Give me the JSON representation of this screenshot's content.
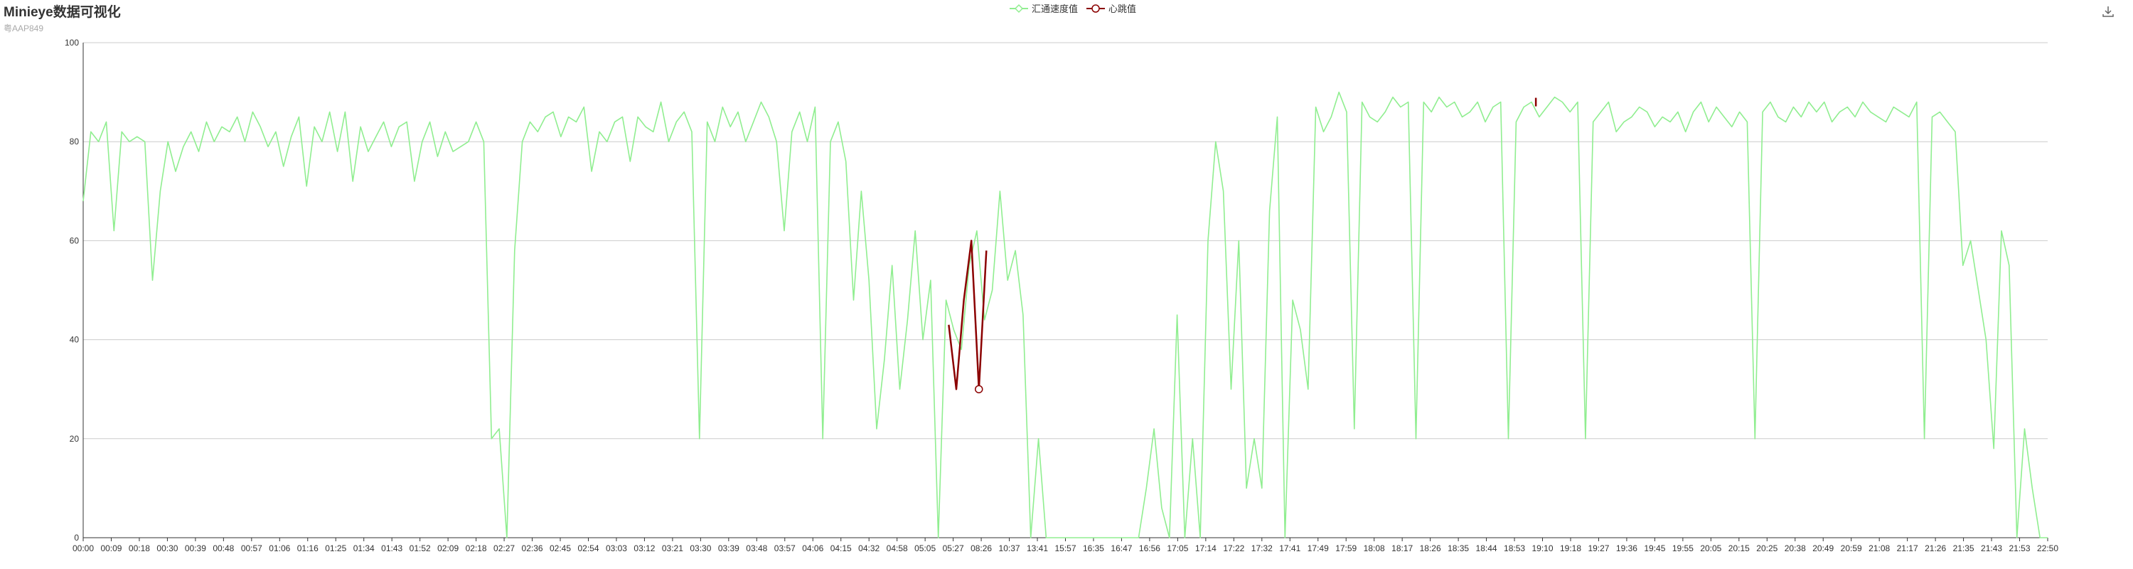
{
  "title": "Minieye数据可视化",
  "subtitle": "粤AAP849",
  "toolbox": {
    "icon": "download-icon"
  },
  "colors": {
    "speed": "#90ee90",
    "heartbeat": "#8b0000",
    "axis": "#333333",
    "grid": "#cccccc"
  },
  "chart_data": {
    "type": "line",
    "title": "Minieye数据可视化",
    "subtitle": "粤AAP849",
    "legend_position": "top-center",
    "grid": true,
    "ylim": [
      0,
      100
    ],
    "y_ticks": [
      0,
      20,
      40,
      60,
      80,
      100
    ],
    "x_ticks": [
      "00:00",
      "00:09",
      "00:18",
      "00:30",
      "00:39",
      "00:48",
      "00:57",
      "01:06",
      "01:16",
      "01:25",
      "01:34",
      "01:43",
      "01:52",
      "02:09",
      "02:18",
      "02:27",
      "02:36",
      "02:45",
      "02:54",
      "03:03",
      "03:12",
      "03:21",
      "03:30",
      "03:39",
      "03:48",
      "03:57",
      "04:06",
      "04:15",
      "04:32",
      "04:58",
      "05:05",
      "05:27",
      "08:26",
      "10:37",
      "13:41",
      "15:57",
      "16:35",
      "16:47",
      "16:56",
      "17:05",
      "17:14",
      "17:22",
      "17:32",
      "17:41",
      "17:49",
      "17:59",
      "18:08",
      "18:17",
      "18:26",
      "18:35",
      "18:44",
      "18:53",
      "19:10",
      "19:18",
      "19:27",
      "19:36",
      "19:45",
      "19:55",
      "20:05",
      "20:15",
      "20:25",
      "20:38",
      "20:49",
      "20:59",
      "21:08",
      "21:17",
      "21:26",
      "21:35",
      "21:43",
      "21:53",
      "22:50"
    ],
    "series": [
      {
        "name": "汇通速度值",
        "color": "#90ee90",
        "values": [
          68,
          82,
          80,
          84,
          62,
          82,
          80,
          81,
          80,
          52,
          70,
          80,
          74,
          79,
          82,
          78,
          84,
          80,
          83,
          82,
          85,
          80,
          86,
          83,
          79,
          82,
          75,
          81,
          85,
          71,
          83,
          80,
          86,
          78,
          86,
          72,
          83,
          78,
          81,
          84,
          79,
          83,
          84,
          72,
          80,
          84,
          77,
          82,
          78,
          79,
          80,
          84,
          80,
          20,
          22,
          0,
          58,
          80,
          84,
          82,
          85,
          86,
          81,
          85,
          84,
          87,
          74,
          82,
          80,
          84,
          85,
          76,
          85,
          83,
          82,
          88,
          80,
          84,
          86,
          82,
          20,
          84,
          80,
          87,
          83,
          86,
          80,
          84,
          88,
          85,
          80,
          62,
          82,
          86,
          80,
          87,
          20,
          80,
          84,
          76,
          48,
          70,
          52,
          22,
          36,
          55,
          30,
          44,
          62,
          40,
          52,
          0,
          48,
          42,
          38,
          55,
          62,
          44,
          50,
          70,
          52,
          58,
          45,
          0,
          20,
          0,
          0,
          0,
          0,
          0,
          0,
          0,
          0,
          0,
          0,
          0,
          0,
          0,
          10,
          22,
          6,
          0,
          45,
          0,
          20,
          0,
          60,
          80,
          70,
          30,
          60,
          10,
          20,
          10,
          66,
          85,
          0,
          48,
          42,
          30,
          87,
          82,
          85,
          90,
          86,
          22,
          88,
          85,
          84,
          86,
          89,
          87,
          88,
          20,
          88,
          86,
          89,
          87,
          88,
          85,
          86,
          88,
          84,
          87,
          88,
          20,
          84,
          87,
          88,
          85,
          87,
          89,
          88,
          86,
          88,
          20,
          84,
          86,
          88,
          82,
          84,
          85,
          87,
          86,
          83,
          85,
          84,
          86,
          82,
          86,
          88,
          84,
          87,
          85,
          83,
          86,
          84,
          20,
          86,
          88,
          85,
          84,
          87,
          85,
          88,
          86,
          88,
          84,
          86,
          87,
          85,
          88,
          86,
          85,
          84,
          87,
          86,
          85,
          88,
          20,
          85,
          86,
          84,
          82,
          55,
          60,
          50,
          40,
          18,
          62,
          55,
          0,
          22,
          10,
          0,
          0
        ],
        "note": ""
      },
      {
        "name": "心跳值",
        "color": "#8b0000",
        "values": [
          null,
          null,
          null,
          null,
          null,
          null,
          null,
          null,
          null,
          null,
          null,
          null,
          null,
          null,
          null,
          null,
          null,
          null,
          null,
          null,
          null,
          null,
          null,
          null,
          null,
          null,
          null,
          null,
          null,
          null,
          null,
          null,
          null,
          null,
          null,
          null,
          null,
          null,
          null,
          null,
          null,
          null,
          null,
          null,
          null,
          null,
          null,
          null,
          null,
          null,
          null,
          null,
          null,
          null,
          null,
          null,
          null,
          null,
          null,
          null,
          null,
          null,
          null,
          null,
          null,
          null,
          null,
          null,
          null,
          null,
          null,
          null,
          null,
          null,
          null,
          null,
          null,
          null,
          null,
          null,
          null,
          null,
          null,
          null,
          null,
          null,
          null,
          null,
          null,
          null,
          null,
          null,
          null,
          null,
          null,
          null,
          null,
          null,
          null,
          null,
          null,
          null,
          null,
          null,
          null,
          null,
          null,
          null,
          null,
          null,
          null,
          null,
          null,
          null,
          null,
          43,
          30,
          48,
          60,
          30,
          58,
          null,
          null,
          null,
          null,
          null,
          null,
          null,
          null,
          null,
          null,
          null,
          null,
          null,
          null,
          null,
          null,
          null,
          null,
          null,
          null,
          null,
          null,
          null,
          null,
          null,
          null,
          null,
          null,
          null,
          null,
          null,
          null,
          null,
          null,
          null,
          null,
          null,
          null,
          null,
          null,
          null,
          null,
          null,
          null,
          null,
          null,
          null,
          null,
          null,
          null,
          null,
          null,
          null,
          null,
          null,
          null,
          null,
          null,
          null,
          null,
          null,
          null,
          null,
          null,
          null,
          null,
          null,
          null,
          null,
          null,
          null,
          null,
          88,
          null,
          null,
          null,
          null,
          null,
          null,
          null,
          null,
          null,
          null,
          null,
          null,
          null,
          null,
          null,
          null,
          null,
          null,
          null,
          null,
          null,
          null,
          null,
          null,
          null,
          null,
          null,
          null,
          null,
          null,
          null,
          null,
          null,
          null,
          null,
          null,
          null,
          null,
          null,
          null,
          null,
          null,
          null,
          null,
          null,
          null,
          null,
          null,
          null,
          null,
          null,
          null,
          null,
          null,
          null,
          null,
          null,
          null,
          null,
          null,
          null,
          null,
          null,
          null,
          null,
          null,
          null,
          null
        ],
        "note": ""
      }
    ]
  }
}
